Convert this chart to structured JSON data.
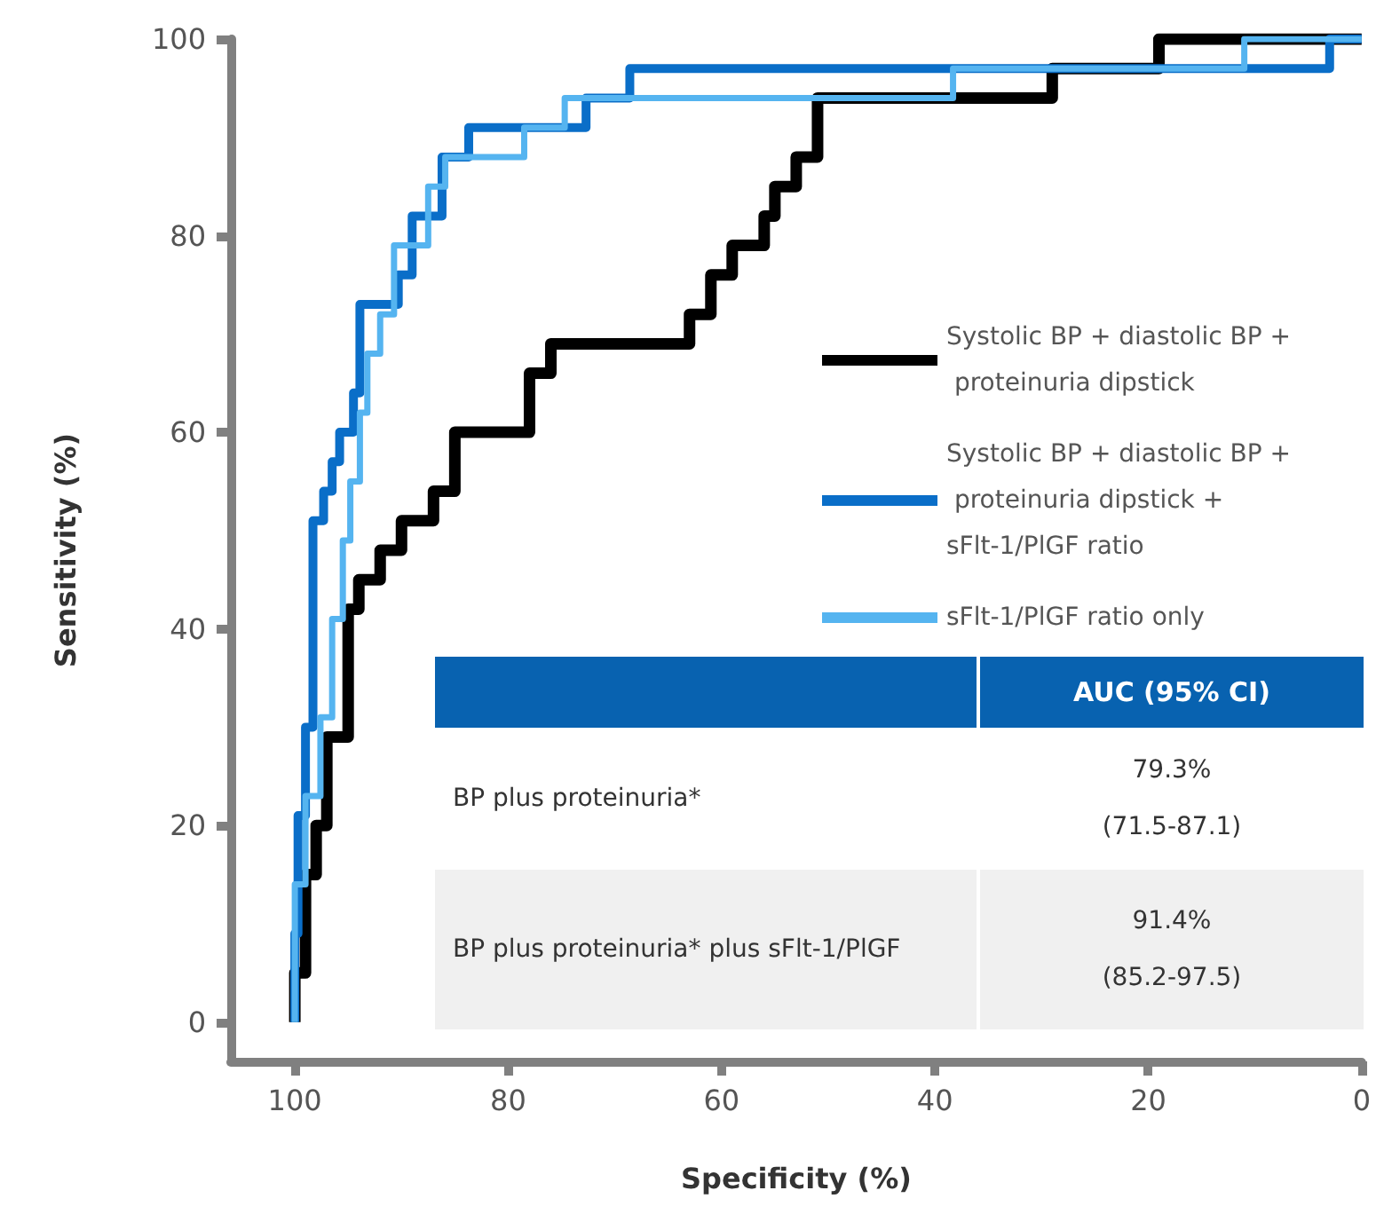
{
  "chart_data": {
    "type": "line",
    "xlabel": "Specificity (%)",
    "ylabel": "Sensitivity (%)",
    "xlim": [
      106,
      0
    ],
    "ylim": [
      -4,
      100
    ],
    "xticks": [
      100,
      80,
      60,
      40,
      20,
      0
    ],
    "yticks": [
      0,
      20,
      40,
      60,
      80,
      100
    ],
    "grid": false,
    "legend": "right",
    "marker": "none",
    "line_style": "solid",
    "series": [
      {
        "name": "Systolic BP + diastolic BP + proteinuria dipstick",
        "color": "#000000",
        "x": [
          100,
          100,
          99,
          99,
          98,
          98,
          97,
          97,
          95,
          95,
          94,
          94,
          92,
          92,
          90,
          90,
          87,
          87,
          85,
          85,
          78,
          78,
          76,
          76,
          63,
          63,
          61,
          61,
          59,
          59,
          56,
          56,
          55,
          55,
          53,
          53,
          51,
          51,
          29,
          29,
          19,
          19,
          0
        ],
        "values": [
          0,
          5,
          5,
          15,
          15,
          20,
          20,
          29,
          29,
          42,
          42,
          45,
          45,
          48,
          48,
          51,
          51,
          54,
          54,
          60,
          60,
          66,
          66,
          69,
          69,
          72,
          72,
          76,
          76,
          79,
          79,
          82,
          82,
          85,
          85,
          88,
          88,
          94,
          94,
          97,
          97,
          100,
          100
        ]
      },
      {
        "name": "Systolic BP + diastolic BP + proteinuria dipstick + sFlt-1/PlGF ratio",
        "color": "#0a6ec8",
        "x": [
          100,
          100,
          99.7,
          99.7,
          99,
          99,
          98.3,
          98.3,
          97.3,
          97.3,
          96.5,
          96.5,
          95.8,
          95.8,
          94.5,
          94.5,
          93.9,
          93.9,
          90.3,
          90.3,
          89,
          89,
          86.2,
          86.2,
          83.7,
          83.7,
          72.7,
          72.7,
          68.6,
          68.6,
          3,
          3,
          0
        ],
        "values": [
          0,
          9,
          9,
          21,
          21,
          30,
          30,
          51,
          51,
          54,
          54,
          57,
          57,
          60,
          60,
          64,
          64,
          73,
          73,
          76,
          76,
          82,
          82,
          88,
          88,
          91,
          91,
          94,
          94,
          97,
          97,
          100,
          100
        ]
      },
      {
        "name": "sFlt-1/PlGF ratio only",
        "color": "#55b4f0",
        "x": [
          100,
          100,
          99,
          99,
          97.6,
          97.6,
          96.5,
          96.5,
          95.5,
          95.5,
          94.8,
          94.8,
          93.9,
          93.9,
          93.2,
          93.2,
          92,
          92,
          90.7,
          90.7,
          87.5,
          87.5,
          85.9,
          85.9,
          78.5,
          78.5,
          74.7,
          74.7,
          38.3,
          38.3,
          11,
          11,
          0
        ],
        "values": [
          0,
          14,
          14,
          23,
          23,
          31,
          31,
          41,
          41,
          49,
          49,
          55,
          55,
          62,
          62,
          68,
          68,
          72,
          72,
          79,
          79,
          85,
          85,
          88,
          88,
          91,
          91,
          94,
          94,
          97,
          97,
          100,
          100
        ]
      }
    ],
    "annotations": [
      "AUC (95% CI)",
      "BP plus proteinuria*",
      "79.3%\n(71.5-87.1)",
      "BP plus proteinuria* plus sFlt-1/PlGF",
      "91.4%\n(85.2-97.5)"
    ]
  }
}
